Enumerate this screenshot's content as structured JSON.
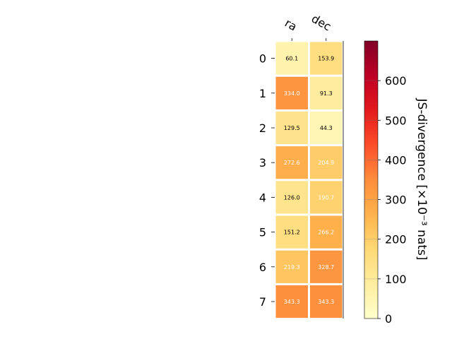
{
  "chart_data": {
    "type": "heatmap",
    "x_categories": [
      "ra",
      "dec"
    ],
    "y_categories": [
      "0",
      "1",
      "2",
      "3",
      "4",
      "5",
      "6",
      "7"
    ],
    "values": [
      [
        60.1,
        153.9
      ],
      [
        334.0,
        91.3
      ],
      [
        129.5,
        44.3
      ],
      [
        272.6,
        204.9
      ],
      [
        126.0,
        190.7
      ],
      [
        151.2,
        266.2
      ],
      [
        219.3,
        328.7
      ],
      [
        343.3,
        343.3
      ]
    ],
    "value_labels": [
      [
        "60.1",
        "153.9"
      ],
      [
        "334.0",
        "91.3"
      ],
      [
        "129.5",
        "44.3"
      ],
      [
        "272.6",
        "204.9"
      ],
      [
        "126.0",
        "190.7"
      ],
      [
        "151.2",
        "266.2"
      ],
      [
        "219.3",
        "328.7"
      ],
      [
        "343.3",
        "343.3"
      ]
    ],
    "colormap": "YlOrRd",
    "colorbar": {
      "label": "JS-divergence [×10⁻³ nats]",
      "range": [
        0,
        700
      ],
      "ticks": [
        0,
        100,
        200,
        300,
        400,
        500,
        600
      ],
      "tick_labels": [
        "0",
        "100",
        "200",
        "300",
        "400",
        "500",
        "600"
      ]
    },
    "grid": false
  }
}
